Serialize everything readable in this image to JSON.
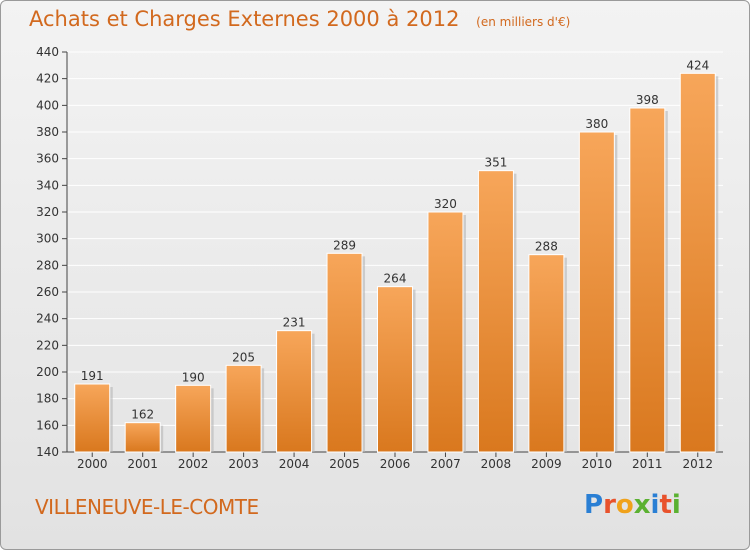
{
  "title": "Achats et Charges Externes 2000 à 2012",
  "subtitle": "(en milliers d'€)",
  "commune": "VILLENEUVE-LE-COMTE",
  "logo": {
    "label": "Proxiti",
    "letters": [
      "P",
      "r",
      "o",
      "x",
      "i",
      "t",
      "i"
    ]
  },
  "colors": {
    "bar_light": "#f7a65a",
    "bar_dark": "#d9781e",
    "title": "#d2691e",
    "axis": "#444444",
    "grid": "#ffffff"
  },
  "chart_data": {
    "type": "bar",
    "categories": [
      "2000",
      "2001",
      "2002",
      "2003",
      "2004",
      "2005",
      "2006",
      "2007",
      "2008",
      "2009",
      "2010",
      "2011",
      "2012"
    ],
    "values": [
      191,
      162,
      190,
      205,
      231,
      289,
      264,
      320,
      351,
      288,
      380,
      398,
      424
    ],
    "ylim": [
      140,
      440
    ],
    "yticks": [
      140,
      160,
      180,
      200,
      220,
      240,
      260,
      280,
      300,
      320,
      340,
      360,
      380,
      400,
      420,
      440
    ],
    "grid": true,
    "data_labels": true,
    "xlabel": "",
    "ylabel": ""
  }
}
